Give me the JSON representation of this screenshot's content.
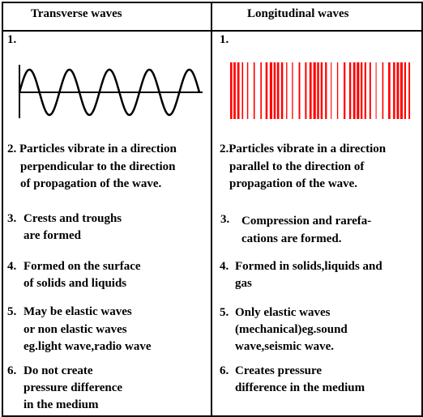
{
  "headers": {
    "transverse": "Transverse waves",
    "longitudinal": "Longitudinal waves"
  },
  "colors": {
    "bars": "#ff0000",
    "lines": "#000000"
  },
  "transverse": {
    "p1_num": "1.",
    "p2": [
      "2. Particles vibrate in a direction",
      "perpendicular to the direction",
      "of propagation of the wave."
    ],
    "p3_num": "3.",
    "p3": [
      "Crests and troughs",
      "are formed"
    ],
    "p4_num": "4.",
    "p4": [
      "Formed on the surface",
      "of solids and liquids"
    ],
    "p5_num": "5.",
    "p5": [
      "May be elastic waves",
      "or non elastic waves",
      "eg.light wave,radio wave"
    ],
    "p6_num": "6.",
    "p6": [
      "Do not create",
      "pressure difference",
      "in the medium"
    ]
  },
  "longitudinal": {
    "p1_num": "1.",
    "p2": [
      "2.Particles vibrate in a direction",
      "parallel to the direction of",
      "propagation of the wave."
    ],
    "p3_num": "3.",
    "p3": [
      "Compression and rarefa-",
      "cations are formed."
    ],
    "p4_num": "4.",
    "p4": [
      "Formed in solids,liquids and",
      "gas"
    ],
    "p5_num": "5.",
    "p5": [
      "Only elastic waves",
      "(mechanical)eg.sound",
      "wave,seismic wave."
    ],
    "p6_num": "6.",
    "p6": [
      "Creates pressure",
      "difference in the medium"
    ]
  }
}
